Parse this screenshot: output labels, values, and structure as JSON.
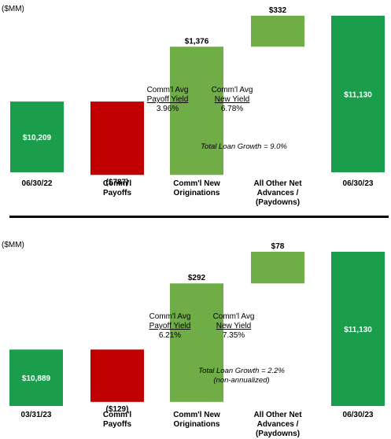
{
  "colors": {
    "total": "#1a9e4b",
    "increase": "#70ad47",
    "decrease": "#c00000"
  },
  "panels": [
    {
      "unit_label": "($MM)",
      "ann_payoff": {
        "line1": "Comm'l Avg",
        "line2": "Payoff Yield",
        "line3": "3.96%"
      },
      "ann_new": {
        "line1": "Comm'l Avg",
        "line2": "New Yield",
        "line3": "6.78%"
      },
      "growth": {
        "line1": "Total Loan Growth =   9.0%",
        "line2": ""
      },
      "chart_data": {
        "type": "bar",
        "subtype": "waterfall",
        "categories": [
          "06/30/22",
          "Comm'l Payoffs",
          "Comm'l New Originations",
          "All Other Net Advances / (Paydowns)",
          "06/30/23"
        ],
        "category_lines": [
          [
            "06/30/22"
          ],
          [
            "Comm'l",
            "Payoffs"
          ],
          [
            "Comm'l New",
            "Originations"
          ],
          [
            "All Other Net",
            "Advances /",
            "(Paydowns)"
          ],
          [
            "06/30/23"
          ]
        ],
        "values": [
          10209,
          -787,
          1376,
          332,
          11130
        ],
        "kinds": [
          "total",
          "decrease",
          "increase",
          "increase",
          "total"
        ],
        "data_labels": [
          "$10,209",
          "($787)",
          "$1,376",
          "$332",
          "$11,130"
        ],
        "ylabel": "($MM)"
      }
    },
    {
      "unit_label": "($MM)",
      "ann_payoff": {
        "line1": "Comm'l Avg",
        "line2": "Payoff Yield",
        "line3": "6.21%"
      },
      "ann_new": {
        "line1": "Comm'l Avg",
        "line2": "New Yield",
        "line3": "7.35%"
      },
      "growth": {
        "line1": "Total Loan Growth =   2.2%",
        "line2": "(non-annualized)"
      },
      "chart_data": {
        "type": "bar",
        "subtype": "waterfall",
        "categories": [
          "03/31/23",
          "Comm'l Payoffs",
          "Comm'l New Originations",
          "All Other Net Advances / (Paydowns)",
          "06/30/23"
        ],
        "category_lines": [
          [
            "03/31/23"
          ],
          [
            "Comm'l",
            "Payoffs"
          ],
          [
            "Comm'l New",
            "Originations"
          ],
          [
            "All Other Net",
            "Advances /",
            "(Paydowns)"
          ],
          [
            "06/30/23"
          ]
        ],
        "values": [
          10889,
          -129,
          292,
          78,
          11130
        ],
        "kinds": [
          "total",
          "decrease",
          "increase",
          "increase",
          "total"
        ],
        "data_labels": [
          "$10,889",
          "($129)",
          "$292",
          "$78",
          "$11,130"
        ],
        "ylabel": "($MM)"
      }
    }
  ]
}
